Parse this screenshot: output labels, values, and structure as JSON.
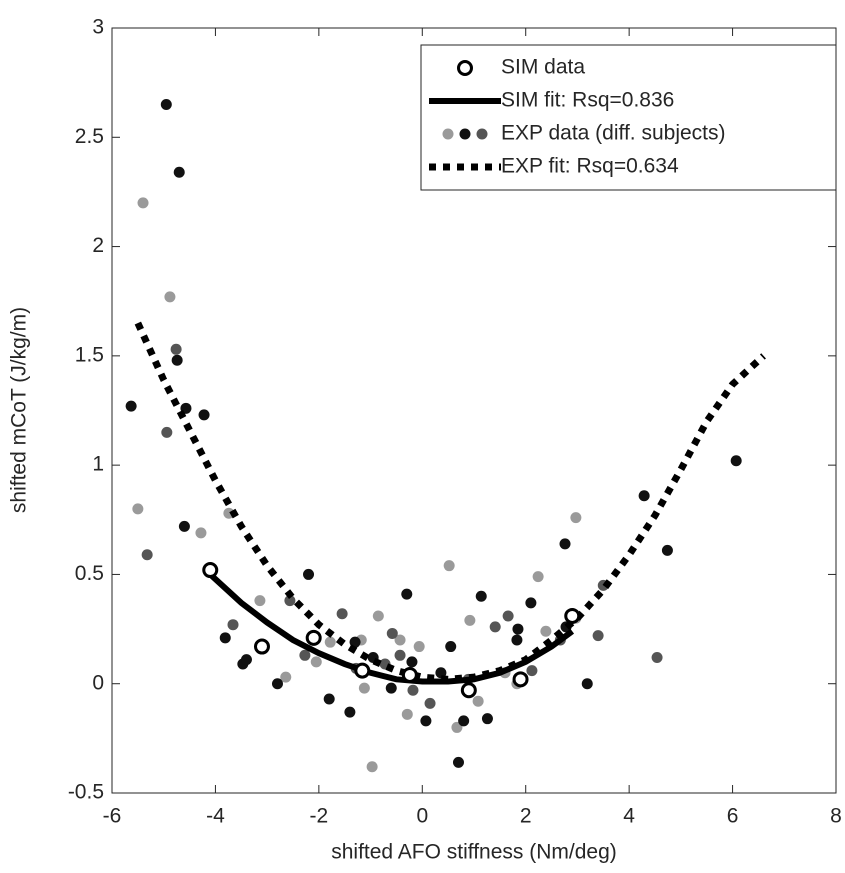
{
  "chart_data": {
    "type": "scatter",
    "x_label": "shifted AFO stiffness (Nm/deg)",
    "y_label": "shifted mCoT (J/kg/m)",
    "xlim": [
      -6,
      8
    ],
    "xticks": [
      -6,
      -4,
      -2,
      0,
      2,
      4,
      6,
      8
    ],
    "ylim": [
      -0.5,
      3
    ],
    "yticks": [
      -0.5,
      0,
      0.5,
      1,
      1.5,
      2,
      2.5,
      3
    ],
    "legend": "top-right",
    "series": [
      {
        "name": "SIM data",
        "style": "open-circle",
        "color": "#000000",
        "x": [
          -4.1,
          -3.1,
          -2.1,
          -1.16,
          -0.24,
          0.9,
          1.9,
          2.9
        ],
        "values": [
          0.52,
          0.17,
          0.21,
          0.06,
          0.04,
          -0.03,
          0.02,
          0.31
        ]
      },
      {
        "name": "SIM fit: Rsq=0.836",
        "style": "line",
        "color": "#000000",
        "x": [
          -4.1,
          -3.5,
          -3,
          -2.5,
          -2,
          -1.5,
          -1,
          -0.5,
          0,
          0.5,
          1,
          1.5,
          2,
          2.5,
          2.9
        ],
        "values": [
          0.5,
          0.37,
          0.28,
          0.2,
          0.14,
          0.09,
          0.05,
          0.02,
          0.01,
          0.01,
          0.02,
          0.05,
          0.1,
          0.17,
          0.24
        ]
      },
      {
        "name": "EXP data (diff. subjects)",
        "style": "dots",
        "groups": [
          {
            "color": "#9a9a9a",
            "x": [
              -5.4,
              -4.88,
              -5.5,
              -4.28,
              -3.74,
              -3.14,
              -2.64,
              -2.05,
              -1.78,
              -1.18,
              -0.97,
              -0.85,
              -1.12,
              -0.29,
              -0.06,
              0.52,
              0.67,
              0.92,
              1.08,
              1.6,
              2.24,
              2.39,
              2.97,
              2.97,
              1.83,
              -0.43
            ],
            "values": [
              2.2,
              1.77,
              0.8,
              0.69,
              0.78,
              0.38,
              0.03,
              0.1,
              0.19,
              0.2,
              -0.38,
              0.31,
              -0.02,
              -0.14,
              0.17,
              0.54,
              -0.2,
              0.29,
              -0.08,
              0.05,
              0.49,
              0.24,
              0.3,
              0.76,
              0.0,
              0.2
            ]
          },
          {
            "color": "#111111",
            "x": [
              -4.95,
              -4.7,
              -4.74,
              -5.63,
              -4.57,
              -4.22,
              -4.6,
              -3.47,
              -2.8,
              -2.2,
              -1.8,
              -1.4,
              -1.3,
              -0.95,
              -0.6,
              -0.3,
              -0.2,
              0.07,
              0.36,
              0.55,
              0.8,
              0.7,
              1.26,
              0.9,
              1.83,
              2.1,
              2.78,
              2.76,
              3.19,
              1.85,
              4.29,
              4.74,
              6.07,
              -3.81,
              -3.4,
              1.14
            ],
            "values": [
              2.65,
              2.34,
              1.48,
              1.27,
              1.26,
              1.23,
              0.72,
              0.09,
              0.0,
              0.5,
              -0.07,
              -0.13,
              0.19,
              0.12,
              -0.02,
              0.41,
              0.1,
              -0.17,
              0.05,
              0.17,
              -0.17,
              -0.36,
              -0.16,
              -0.04,
              0.2,
              0.37,
              0.26,
              0.64,
              0.0,
              0.25,
              0.86,
              0.61,
              1.02,
              0.21,
              0.11,
              0.4
            ]
          },
          {
            "color": "#555555",
            "x": [
              -4.94,
              -4.76,
              -5.32,
              -3.66,
              -2.56,
              -2.27,
              -1.55,
              -1.28,
              -0.72,
              -0.43,
              -0.18,
              0.15,
              0.89,
              1.41,
              1.66,
              2.12,
              2.67,
              3.4,
              3.5,
              4.54,
              -0.58
            ],
            "values": [
              1.15,
              1.53,
              0.59,
              0.27,
              0.38,
              0.13,
              0.32,
              0.07,
              0.09,
              0.13,
              -0.03,
              -0.09,
              0.02,
              0.26,
              0.31,
              0.06,
              0.2,
              0.22,
              0.45,
              0.12,
              0.23
            ]
          }
        ]
      },
      {
        "name": "EXP fit: Rsq=0.634",
        "style": "dotted-line",
        "color": "#000000",
        "x": [
          -5.5,
          -5,
          -4.5,
          -4,
          -3.5,
          -3,
          -2.5,
          -2,
          -1.5,
          -1,
          -0.5,
          0,
          0.5,
          1,
          1.5,
          2,
          2.5,
          3,
          3.5,
          4,
          4.5,
          5,
          5.5,
          6,
          6.6
        ],
        "values": [
          1.65,
          1.39,
          1.16,
          0.93,
          0.72,
          0.54,
          0.39,
          0.27,
          0.18,
          0.11,
          0.06,
          0.03,
          0.02,
          0.03,
          0.06,
          0.11,
          0.2,
          0.3,
          0.43,
          0.59,
          0.77,
          0.98,
          1.2,
          1.37,
          1.5
        ]
      }
    ]
  }
}
